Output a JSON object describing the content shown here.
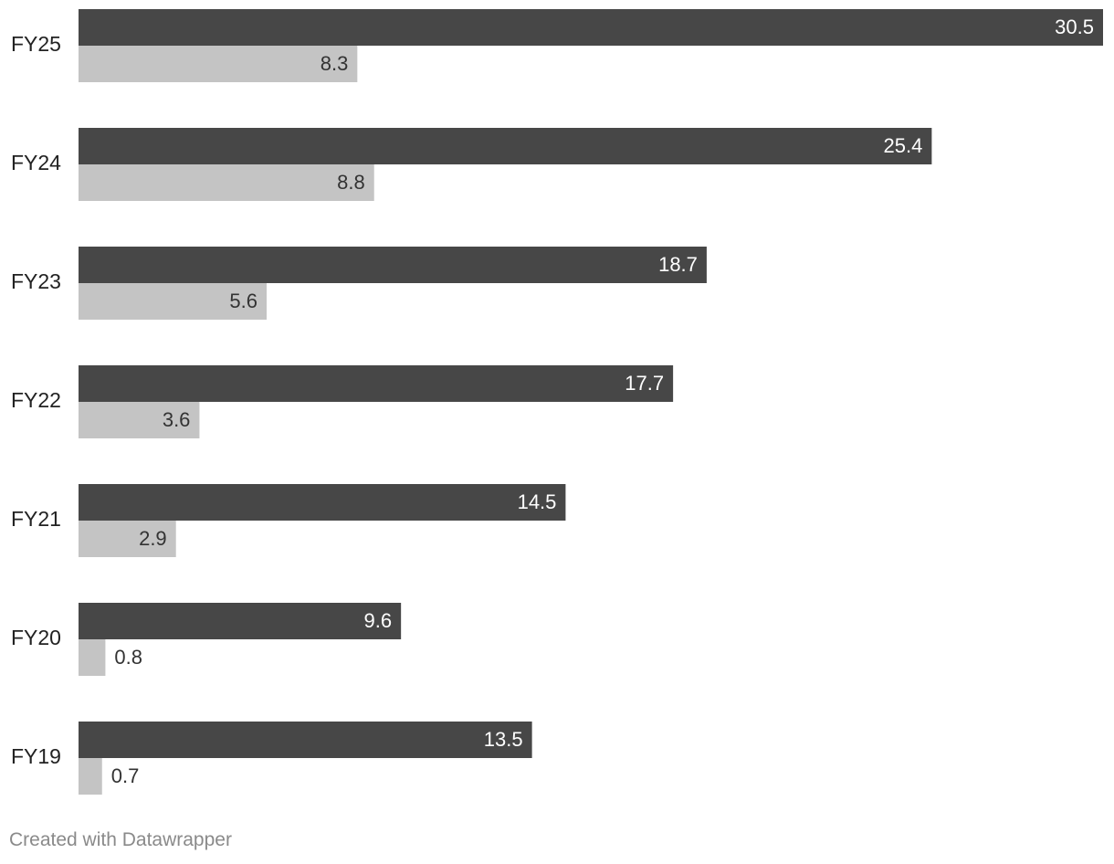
{
  "chart_data": {
    "type": "bar",
    "orientation": "horizontal",
    "categories": [
      "FY25",
      "FY24",
      "FY23",
      "FY22",
      "FY21",
      "FY20",
      "FY19"
    ],
    "series": [
      {
        "values": [
          30.5,
          25.4,
          18.7,
          17.7,
          14.5,
          9.6,
          13.5
        ],
        "color": "#474747",
        "label_color": "#ffffff"
      },
      {
        "values": [
          8.3,
          8.8,
          5.6,
          3.6,
          2.9,
          0.8,
          0.7
        ],
        "color": "#c4c4c4",
        "label_color": "#333333"
      }
    ],
    "xlim": [
      0,
      30.5
    ],
    "grid": false,
    "legend": "none",
    "data_labels": true
  },
  "footer": {
    "credit": "Created with Datawrapper"
  }
}
